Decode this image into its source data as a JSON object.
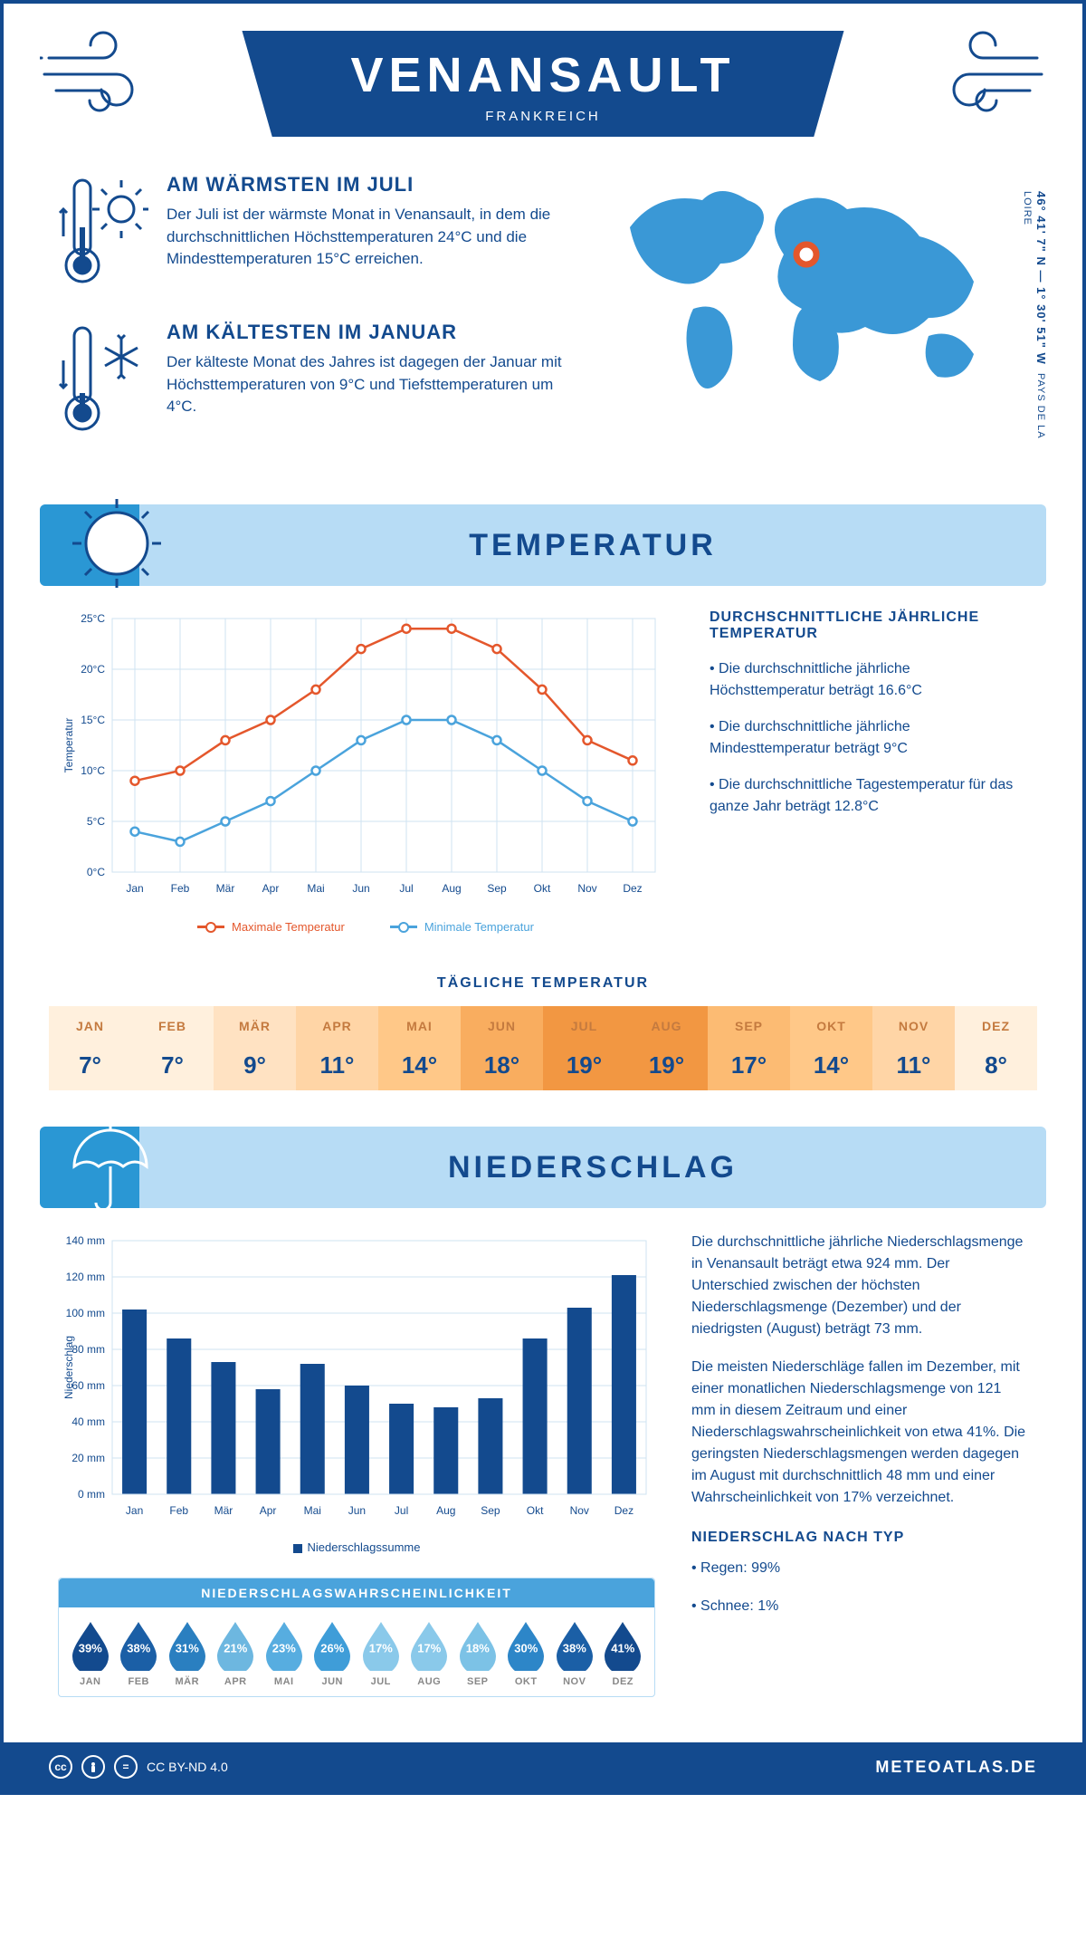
{
  "header": {
    "city": "VENANSAULT",
    "country": "FRANKREICH",
    "coords": "46° 41' 7\" N — 1° 30' 51\" W",
    "region": "PAYS DE LA LOIRE"
  },
  "summary": {
    "warm": {
      "title": "AM WÄRMSTEN IM JULI",
      "text": "Der Juli ist der wärmste Monat in Venansault, in dem die durchschnittlichen Höchsttemperaturen 24°C und die Mindesttemperaturen 15°C erreichen."
    },
    "cold": {
      "title": "AM KÄLTESTEN IM JANUAR",
      "text": "Der kälteste Monat des Jahres ist dagegen der Januar mit Höchsttemperaturen von 9°C und Tiefsttemperaturen um 4°C."
    }
  },
  "sections": {
    "temp_title": "TEMPERATUR",
    "precip_title": "NIEDERSCHLAG"
  },
  "months_short": [
    "Jan",
    "Feb",
    "Mär",
    "Apr",
    "Mai",
    "Jun",
    "Jul",
    "Aug",
    "Sep",
    "Okt",
    "Nov",
    "Dez"
  ],
  "months_caps": [
    "JAN",
    "FEB",
    "MÄR",
    "APR",
    "MAI",
    "JUN",
    "JUL",
    "AUG",
    "SEP",
    "OKT",
    "NOV",
    "DEZ"
  ],
  "temp_chart": {
    "ylabel": "Temperatur",
    "ylim": [
      0,
      25
    ],
    "ytick_step": 5,
    "max_series": [
      9,
      10,
      13,
      15,
      18,
      22,
      24,
      24,
      22,
      18,
      13,
      11
    ],
    "min_series": [
      4,
      3,
      5,
      7,
      10,
      13,
      15,
      15,
      13,
      10,
      7,
      5
    ],
    "max_color": "#e4572c",
    "min_color": "#4aa3dc",
    "grid_color": "#cfe3f2",
    "legend_max": "Maximale Temperatur",
    "legend_min": "Minimale Temperatur"
  },
  "temp_info": {
    "title": "DURCHSCHNITTLICHE JÄHRLICHE TEMPERATUR",
    "b1": "• Die durchschnittliche jährliche Höchsttemperatur beträgt 16.6°C",
    "b2": "• Die durchschnittliche jährliche Mindesttemperatur beträgt 9°C",
    "b3": "• Die durchschnittliche Tagestemperatur für das ganze Jahr beträgt 12.8°C"
  },
  "daily": {
    "title": "TÄGLICHE TEMPERATUR",
    "values": [
      "7°",
      "7°",
      "9°",
      "11°",
      "14°",
      "18°",
      "19°",
      "19°",
      "17°",
      "14°",
      "11°",
      "8°"
    ],
    "bg_colors": [
      "#fff0dd",
      "#fff0dd",
      "#ffe2c2",
      "#ffd5a6",
      "#ffc888",
      "#f9ad5f",
      "#f29742",
      "#f29742",
      "#fcbb73",
      "#ffc888",
      "#ffd5a6",
      "#fff0dd"
    ]
  },
  "precip_chart": {
    "ylabel": "Niederschlag",
    "ylim": [
      0,
      140
    ],
    "ytick_step": 20,
    "values": [
      102,
      86,
      73,
      58,
      72,
      60,
      50,
      48,
      53,
      86,
      103,
      121
    ],
    "bar_color": "#134a8e",
    "grid_color": "#cfe3f2",
    "legend": "Niederschlagssumme"
  },
  "precip_info": {
    "p1": "Die durchschnittliche jährliche Niederschlagsmenge in Venansault beträgt etwa 924 mm. Der Unterschied zwischen der höchsten Niederschlagsmenge (Dezember) und der niedrigsten (August) beträgt 73 mm.",
    "p2": "Die meisten Niederschläge fallen im Dezember, mit einer monatlichen Niederschlagsmenge von 121 mm in diesem Zeitraum und einer Niederschlagswahrscheinlichkeit von etwa 41%. Die geringsten Niederschlagsmengen werden dagegen im August mit durchschnittlich 48 mm und einer Wahrscheinlichkeit von 17% verzeichnet.",
    "type_title": "NIEDERSCHLAG NACH TYP",
    "type_b1": "• Regen: 99%",
    "type_b2": "• Schnee: 1%"
  },
  "prob": {
    "title": "NIEDERSCHLAGSWAHRSCHEINLICHKEIT",
    "values": [
      "39%",
      "38%",
      "31%",
      "21%",
      "23%",
      "26%",
      "17%",
      "17%",
      "18%",
      "30%",
      "38%",
      "41%"
    ],
    "colors": [
      "#134a8e",
      "#1b5fa6",
      "#2a7fc0",
      "#6db7e0",
      "#57ade0",
      "#3f9dd8",
      "#8ac9ea",
      "#8ac9ea",
      "#7cc2e6",
      "#2d86c8",
      "#1b5fa6",
      "#134a8e"
    ]
  },
  "footer": {
    "license": "CC BY-ND 4.0",
    "site": "METEOATLAS.DE"
  }
}
